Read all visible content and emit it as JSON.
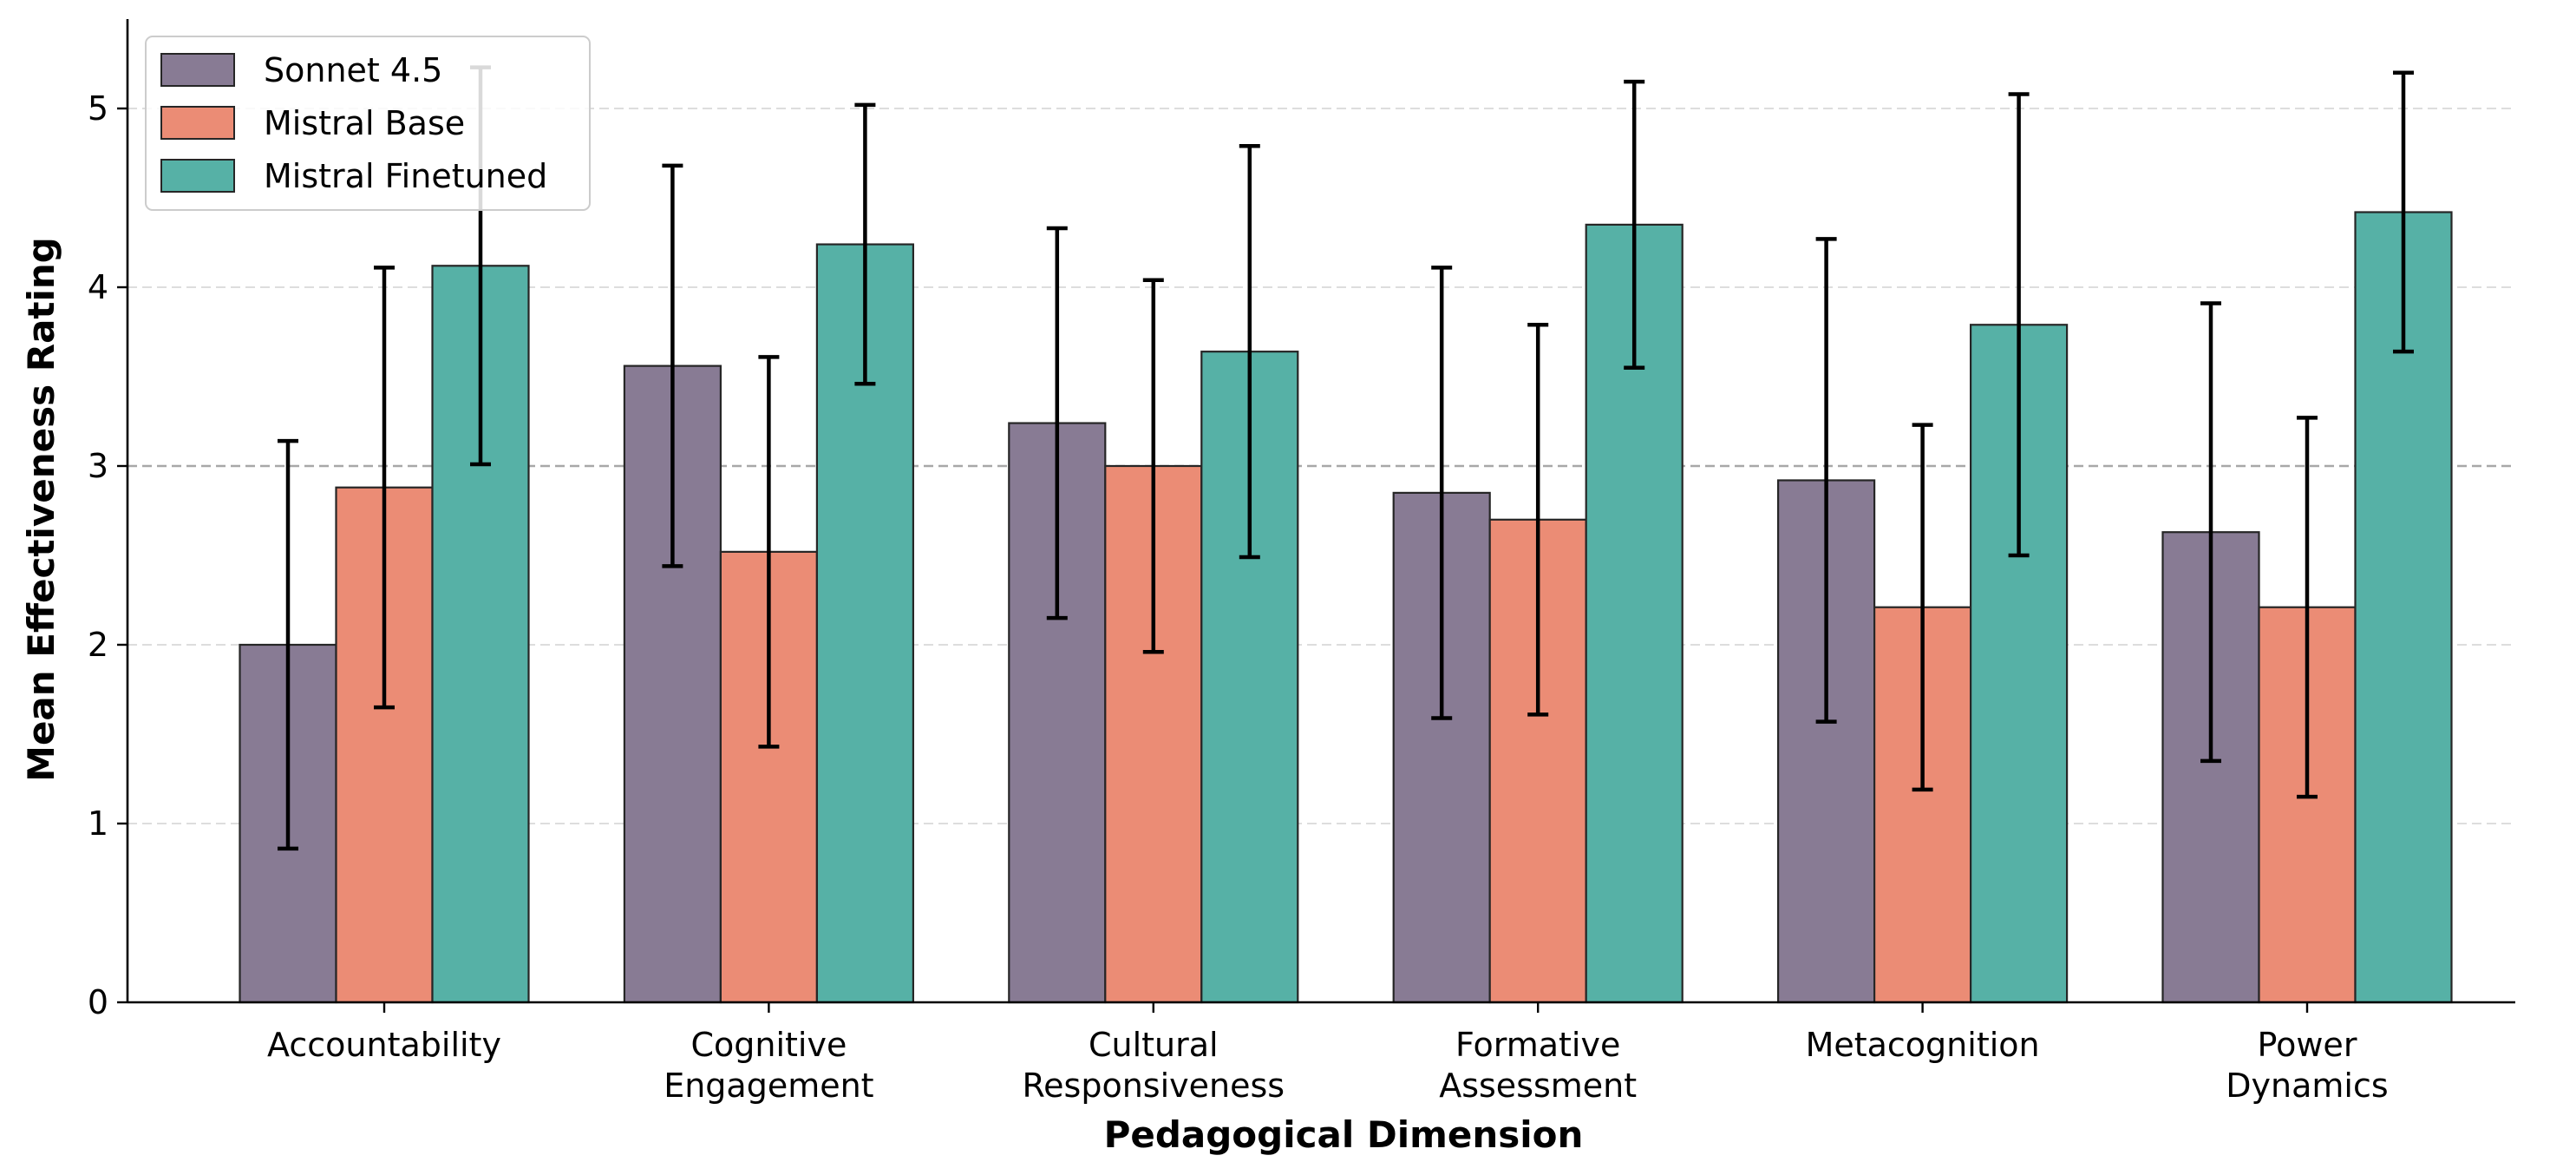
{
  "chart_data": {
    "type": "bar",
    "title": "",
    "xlabel": "Pedagogical Dimension",
    "ylabel": "Mean Effectiveness Rating",
    "ylim": [
      0,
      5.5
    ],
    "yticks": [
      0,
      1,
      2,
      3,
      4,
      5
    ],
    "grid": "horizontal dashed",
    "reference_line": 3,
    "legend_position": "top-left",
    "categories": [
      [
        "Accountability"
      ],
      [
        "Cognitive",
        "Engagement"
      ],
      [
        "Cultural",
        "Responsiveness"
      ],
      [
        "Formative",
        "Assessment"
      ],
      [
        "Metacognition"
      ],
      [
        "Power",
        "Dynamics"
      ]
    ],
    "series": [
      {
        "name": "Sonnet 4.5",
        "color": "#887b94",
        "values": [
          2.0,
          3.56,
          3.24,
          2.85,
          2.92,
          2.63
        ],
        "error": [
          1.14,
          1.12,
          1.09,
          1.26,
          1.35,
          1.28
        ]
      },
      {
        "name": "Mistral Base",
        "color": "#eb8c75",
        "values": [
          2.88,
          2.52,
          3.0,
          2.7,
          2.21,
          2.21
        ],
        "error": [
          1.23,
          1.09,
          1.04,
          1.09,
          1.02,
          1.06
        ]
      },
      {
        "name": "Mistral Finetuned",
        "color": "#56b1a6",
        "values": [
          4.12,
          4.24,
          3.64,
          4.35,
          3.79,
          4.42
        ],
        "error": [
          1.11,
          0.78,
          1.15,
          0.8,
          1.29,
          0.78
        ]
      }
    ]
  }
}
